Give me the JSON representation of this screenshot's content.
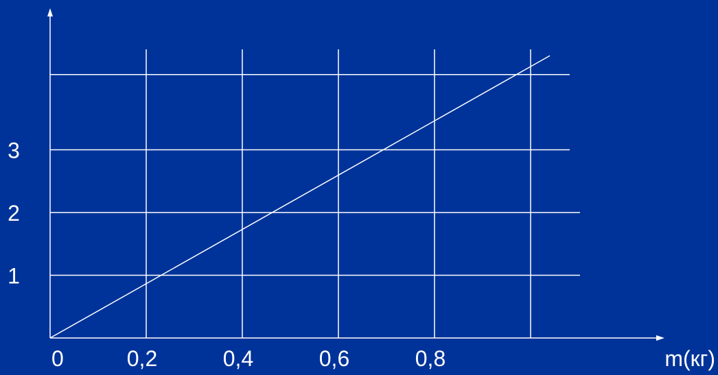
{
  "chart_data": {
    "type": "line",
    "title": "",
    "xlabel": "m(кг)",
    "ylabel": "",
    "x_ticks": [
      {
        "value": 0,
        "label": "0"
      },
      {
        "value": 0.2,
        "label": "0,2"
      },
      {
        "value": 0.4,
        "label": "0,4"
      },
      {
        "value": 0.6,
        "label": "0,6"
      },
      {
        "value": 0.8,
        "label": "0,8"
      }
    ],
    "y_ticks": [
      {
        "value": 1,
        "label": "1"
      },
      {
        "value": 2,
        "label": "2"
      },
      {
        "value": 3,
        "label": "3"
      }
    ],
    "x_gridlines": [
      0.2,
      0.4,
      0.6,
      0.8,
      1.0
    ],
    "y_gridlines": [
      1,
      2,
      3,
      4.2
    ],
    "xlim": [
      0,
      1.3
    ],
    "ylim": [
      0,
      4.5
    ],
    "grid": true,
    "series": [
      {
        "x": [
          0,
          1.04
        ],
        "y": [
          0,
          4.5
        ]
      }
    ],
    "colors": {
      "background": "#003399",
      "foreground": "#ffffff"
    }
  }
}
